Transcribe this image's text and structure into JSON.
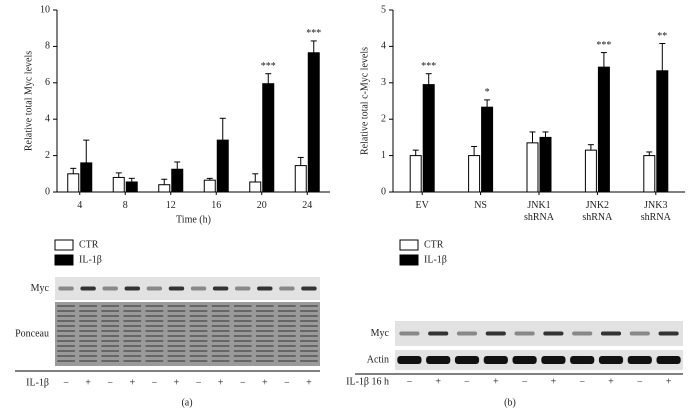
{
  "chart_data": [
    {
      "type": "bar",
      "xlabel": "Time (h)",
      "ylabel": "Relative total Myc levels",
      "categories": [
        "4",
        "8",
        "12",
        "16",
        "20",
        "24"
      ],
      "series": [
        {
          "name": "CTR",
          "color": "#ffffff",
          "values": [
            1.0,
            0.8,
            0.4,
            0.65,
            0.55,
            1.45
          ],
          "errors": [
            0.3,
            0.25,
            0.3,
            0.1,
            0.45,
            0.45
          ],
          "value_annotations": [
            null,
            null,
            null,
            null,
            null,
            null
          ]
        },
        {
          "name": "IL-1β",
          "color": "#000000",
          "values": [
            1.6,
            0.55,
            1.25,
            2.85,
            5.95,
            7.65
          ],
          "errors": [
            1.25,
            0.2,
            0.4,
            1.2,
            0.55,
            0.65
          ],
          "value_annotations": [
            null,
            null,
            null,
            null,
            "***",
            "***"
          ]
        }
      ],
      "ylim": [
        0,
        10
      ],
      "yticks": [
        0,
        2,
        4,
        6,
        8,
        10
      ],
      "grid": false
    },
    {
      "type": "bar",
      "ylabel": "Relative total c-Myc levels",
      "categories": [
        "EV",
        "NS",
        "JNK1\nshRNA",
        "JNK2\nshRNA",
        "JNK3\nshRNA"
      ],
      "series": [
        {
          "name": "CTR",
          "color": "#ffffff",
          "values": [
            1.0,
            1.0,
            1.35,
            1.15,
            1.0
          ],
          "errors": [
            0.15,
            0.25,
            0.3,
            0.15,
            0.1
          ],
          "value_annotations": [
            null,
            null,
            null,
            null,
            null
          ]
        },
        {
          "name": "IL-1β",
          "color": "#000000",
          "values": [
            2.95,
            2.33,
            1.5,
            3.43,
            3.33
          ],
          "errors": [
            0.3,
            0.2,
            0.15,
            0.4,
            0.75
          ],
          "value_annotations": [
            "***",
            "*",
            null,
            "***",
            "**"
          ]
        }
      ],
      "ylim": [
        0,
        5
      ],
      "yticks": [
        0,
        1,
        2,
        3,
        4,
        5
      ],
      "grid": false
    }
  ],
  "blots": [
    {
      "rows": [
        "Myc",
        "Ponceau"
      ],
      "treatment": "IL-1β",
      "lanes": [
        "−",
        "+",
        "−",
        "+",
        "−",
        "+",
        "−",
        "+",
        "−",
        "+",
        "−",
        "+"
      ],
      "panel": "(a)"
    },
    {
      "rows": [
        "Myc",
        "Actin"
      ],
      "treatment": "IL-1β 16 h",
      "lanes": [
        "−",
        "+",
        "−",
        "+",
        "−",
        "+",
        "−",
        "+",
        "−",
        "+"
      ],
      "panel": "(b)"
    }
  ]
}
